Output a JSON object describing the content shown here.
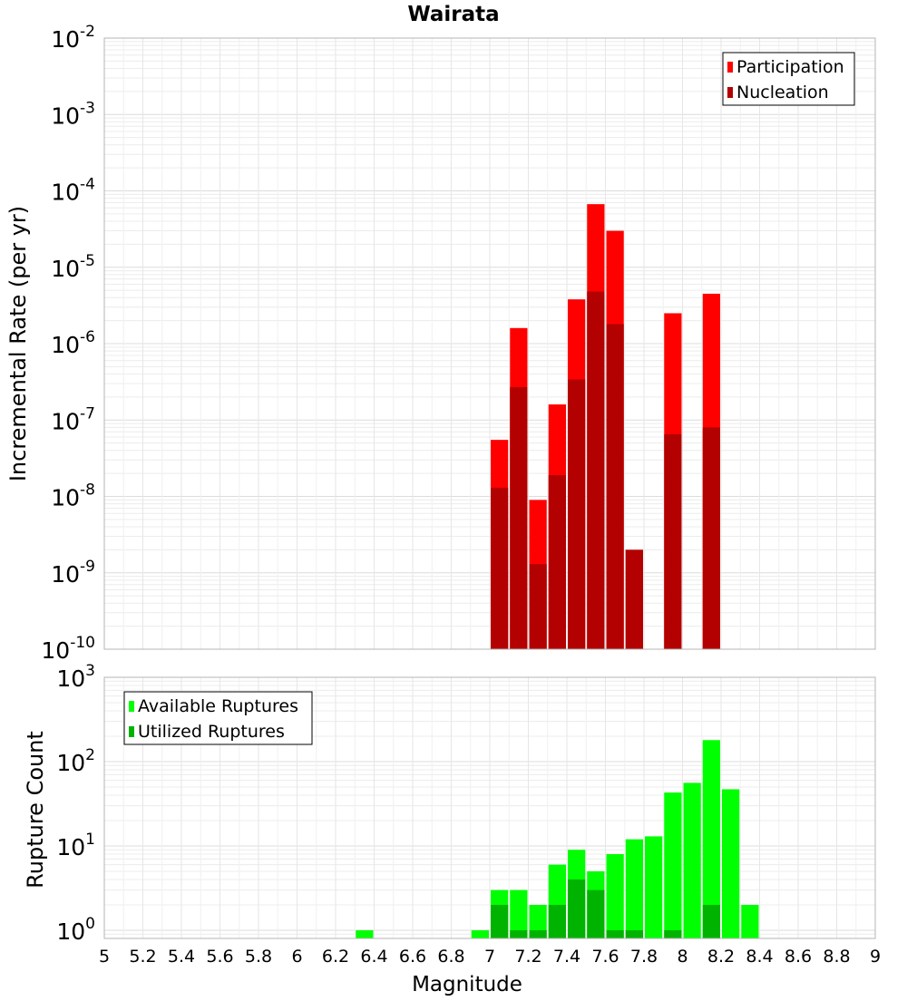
{
  "chart_data": [
    {
      "type": "bar",
      "title": "Wairata",
      "xlabel": "",
      "ylabel": "Incremental Rate (per yr)",
      "yscale": "log",
      "ylim": [
        1e-10,
        0.01
      ],
      "xlim": [
        5,
        9
      ],
      "x_ticks": [
        "5",
        "5.2",
        "5.4",
        "5.6",
        "5.8",
        "6",
        "6.2",
        "6.4",
        "6.6",
        "6.8",
        "7",
        "7.2",
        "7.4",
        "7.6",
        "7.8",
        "8",
        "8.2",
        "8.4",
        "8.6",
        "8.8",
        "9"
      ],
      "y_tick_exponents": [
        -2,
        -3,
        -4,
        -5,
        -6,
        -7,
        -8,
        -9,
        -10
      ],
      "grid": true,
      "legend_position": "top-right",
      "bar_width": 0.1,
      "series": [
        {
          "name": "Participation",
          "color": "#ff0000",
          "points": [
            {
              "x": 7.05,
              "y": 5.5e-08
            },
            {
              "x": 7.15,
              "y": 1.6e-06
            },
            {
              "x": 7.25,
              "y": 9e-09
            },
            {
              "x": 7.35,
              "y": 1.6e-07
            },
            {
              "x": 7.45,
              "y": 3.8e-06
            },
            {
              "x": 7.55,
              "y": 6.7e-05
            },
            {
              "x": 7.65,
              "y": 3e-05
            },
            {
              "x": 7.75,
              "y": 2e-09
            },
            {
              "x": 7.95,
              "y": 2.5e-06
            },
            {
              "x": 8.15,
              "y": 4.5e-06
            }
          ]
        },
        {
          "name": "Nucleation",
          "color": "#b30000",
          "points": [
            {
              "x": 7.05,
              "y": 1.3e-08
            },
            {
              "x": 7.15,
              "y": 2.7e-07
            },
            {
              "x": 7.25,
              "y": 1.3e-09
            },
            {
              "x": 7.35,
              "y": 1.9e-08
            },
            {
              "x": 7.45,
              "y": 3.4e-07
            },
            {
              "x": 7.55,
              "y": 4.8e-06
            },
            {
              "x": 7.65,
              "y": 1.8e-06
            },
            {
              "x": 7.75,
              "y": 2e-09
            },
            {
              "x": 7.95,
              "y": 6.5e-08
            },
            {
              "x": 8.15,
              "y": 8e-08
            }
          ]
        }
      ]
    },
    {
      "type": "bar",
      "title": "",
      "xlabel": "Magnitude",
      "ylabel": "Rupture Count",
      "yscale": "log",
      "ylim": [
        0.8,
        1000
      ],
      "xlim": [
        5,
        9
      ],
      "x_ticks": [
        "5",
        "5.2",
        "5.4",
        "5.6",
        "5.8",
        "6",
        "6.2",
        "6.4",
        "6.6",
        "6.8",
        "7",
        "7.2",
        "7.4",
        "7.6",
        "7.8",
        "8",
        "8.2",
        "8.4",
        "8.6",
        "8.8",
        "9"
      ],
      "y_tick_exponents": [
        0,
        1,
        2,
        3
      ],
      "grid": true,
      "legend_position": "top-left",
      "bar_width": 0.1,
      "series": [
        {
          "name": "Available Ruptures",
          "color": "#00ff00",
          "points": [
            {
              "x": 6.35,
              "y": 1
            },
            {
              "x": 6.95,
              "y": 1
            },
            {
              "x": 7.05,
              "y": 3
            },
            {
              "x": 7.15,
              "y": 3
            },
            {
              "x": 7.25,
              "y": 2
            },
            {
              "x": 7.35,
              "y": 6
            },
            {
              "x": 7.45,
              "y": 9
            },
            {
              "x": 7.55,
              "y": 5
            },
            {
              "x": 7.65,
              "y": 8
            },
            {
              "x": 7.75,
              "y": 12
            },
            {
              "x": 7.85,
              "y": 13
            },
            {
              "x": 7.95,
              "y": 43
            },
            {
              "x": 8.05,
              "y": 56
            },
            {
              "x": 8.15,
              "y": 180
            },
            {
              "x": 8.25,
              "y": 47
            },
            {
              "x": 8.35,
              "y": 2
            }
          ]
        },
        {
          "name": "Utilized Ruptures",
          "color": "#00b300",
          "points": [
            {
              "x": 7.05,
              "y": 2
            },
            {
              "x": 7.15,
              "y": 1
            },
            {
              "x": 7.25,
              "y": 1
            },
            {
              "x": 7.35,
              "y": 2
            },
            {
              "x": 7.45,
              "y": 4
            },
            {
              "x": 7.55,
              "y": 3
            },
            {
              "x": 7.65,
              "y": 1
            },
            {
              "x": 7.75,
              "y": 1
            },
            {
              "x": 7.95,
              "y": 1
            },
            {
              "x": 8.15,
              "y": 2
            }
          ]
        }
      ]
    }
  ]
}
